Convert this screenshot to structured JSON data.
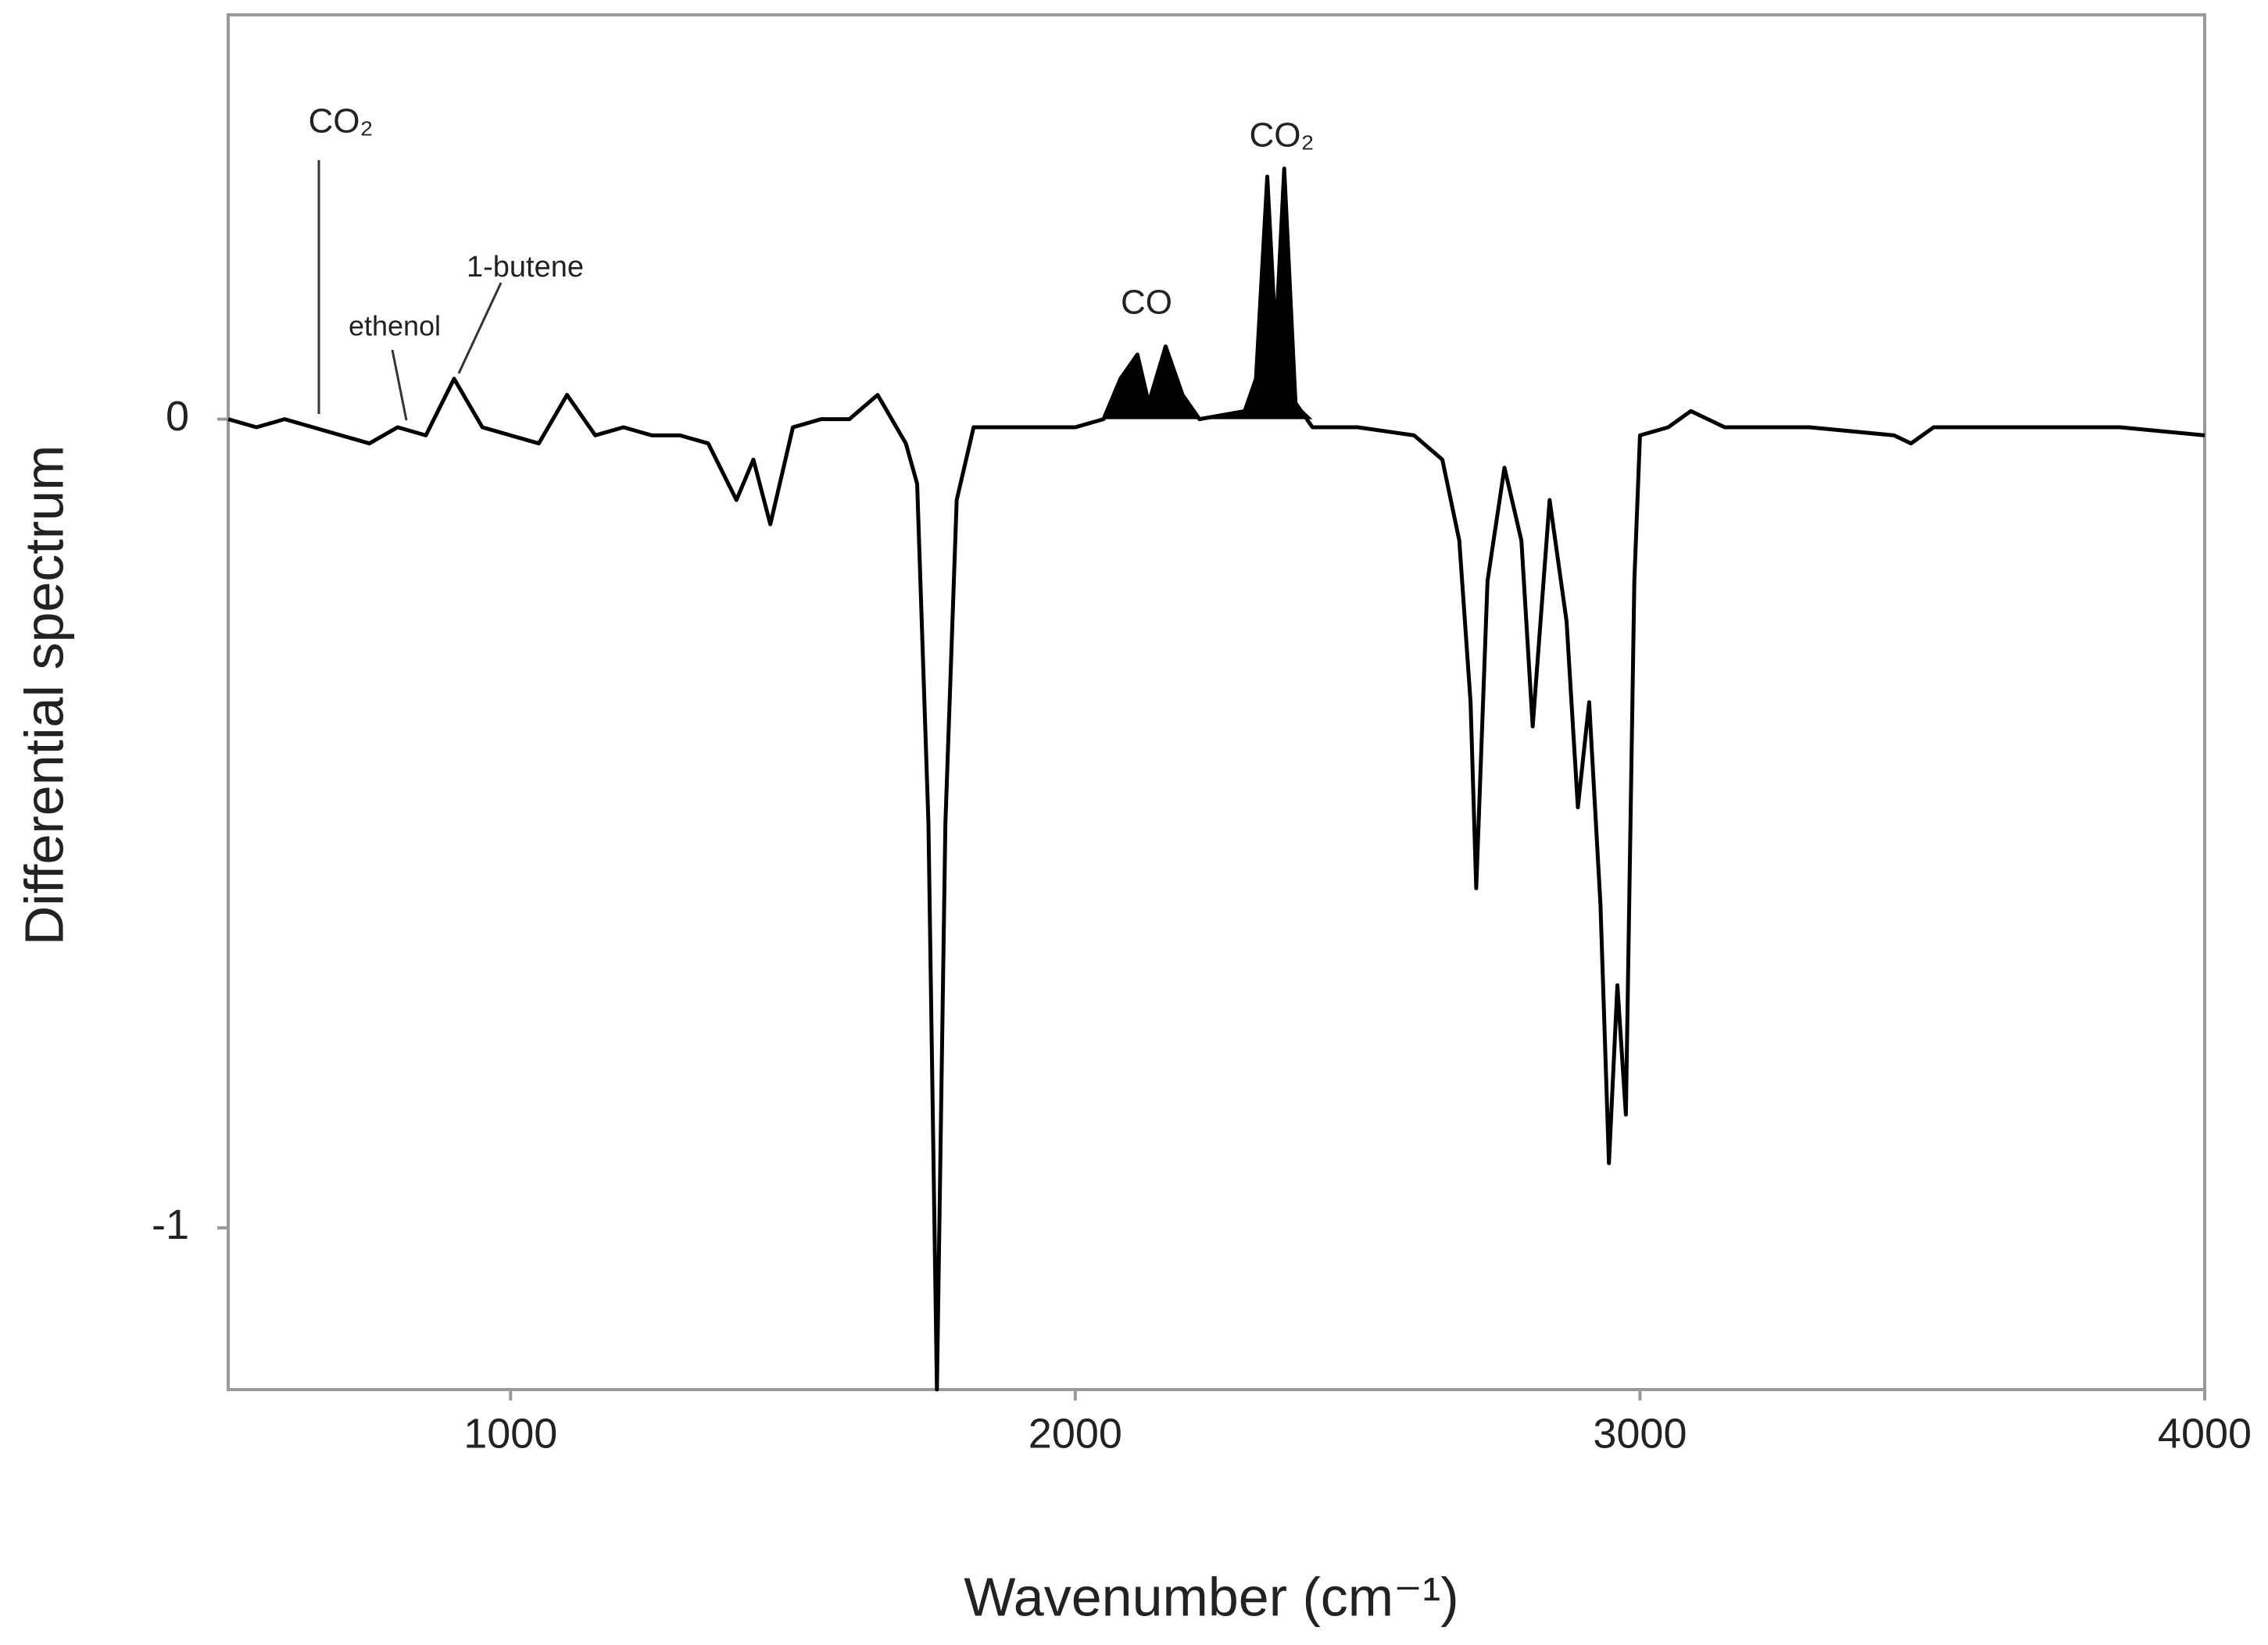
{
  "chart_data": {
    "type": "line",
    "xlabel": "Wavenumber (cm⁻¹)",
    "ylabel": "Differential spectrum",
    "xlim": [
      500,
      4000
    ],
    "ylim": [
      -1.2,
      0.5
    ],
    "xticks": [
      1000,
      2000,
      3000,
      4000
    ],
    "yticks": [
      -1,
      0
    ],
    "grid": false,
    "annotations": [
      "CO₂",
      "ethenol",
      "1-butene",
      "CO",
      "CO₂"
    ],
    "series": [
      {
        "color": "#000000",
        "x": [
          500,
          550,
          600,
          650,
          700,
          750,
          800,
          850,
          900,
          950,
          1000,
          1050,
          1100,
          1150,
          1200,
          1250,
          1300,
          1350,
          1400,
          1430,
          1460,
          1500,
          1550,
          1600,
          1650,
          1700,
          1720,
          1740,
          1755,
          1770,
          1790,
          1820,
          1900,
          2000,
          2050,
          2080,
          2110,
          2130,
          2160,
          2190,
          2220,
          2300,
          2320,
          2340,
          2355,
          2370,
          2390,
          2420,
          2500,
          2600,
          2650,
          2680,
          2700,
          2710,
          2730,
          2760,
          2790,
          2810,
          2840,
          2870,
          2890,
          2910,
          2930,
          2945,
          2960,
          2975,
          2990,
          3000,
          3050,
          3090,
          3150,
          3300,
          3450,
          3480,
          3520,
          3700,
          3850,
          4000
        ],
        "values": [
          0.0,
          -0.01,
          0.0,
          -0.01,
          -0.02,
          -0.03,
          -0.01,
          -0.02,
          0.05,
          -0.01,
          -0.02,
          -0.03,
          0.03,
          -0.02,
          -0.01,
          -0.02,
          -0.02,
          -0.03,
          -0.1,
          -0.05,
          -0.13,
          -0.01,
          0.0,
          0.0,
          0.03,
          -0.03,
          -0.08,
          -0.5,
          -1.2,
          -0.5,
          -0.1,
          -0.01,
          -0.01,
          -0.01,
          0.0,
          0.05,
          0.08,
          0.02,
          0.09,
          0.03,
          0.0,
          0.01,
          0.05,
          0.3,
          0.1,
          0.31,
          0.02,
          -0.01,
          -0.01,
          -0.02,
          -0.05,
          -0.15,
          -0.35,
          -0.58,
          -0.2,
          -0.06,
          -0.15,
          -0.38,
          -0.1,
          -0.25,
          -0.48,
          -0.35,
          -0.6,
          -0.92,
          -0.7,
          -0.86,
          -0.2,
          -0.02,
          -0.01,
          0.01,
          -0.01,
          -0.01,
          -0.02,
          -0.03,
          -0.01,
          -0.01,
          -0.01,
          -0.02
        ]
      }
    ]
  }
}
